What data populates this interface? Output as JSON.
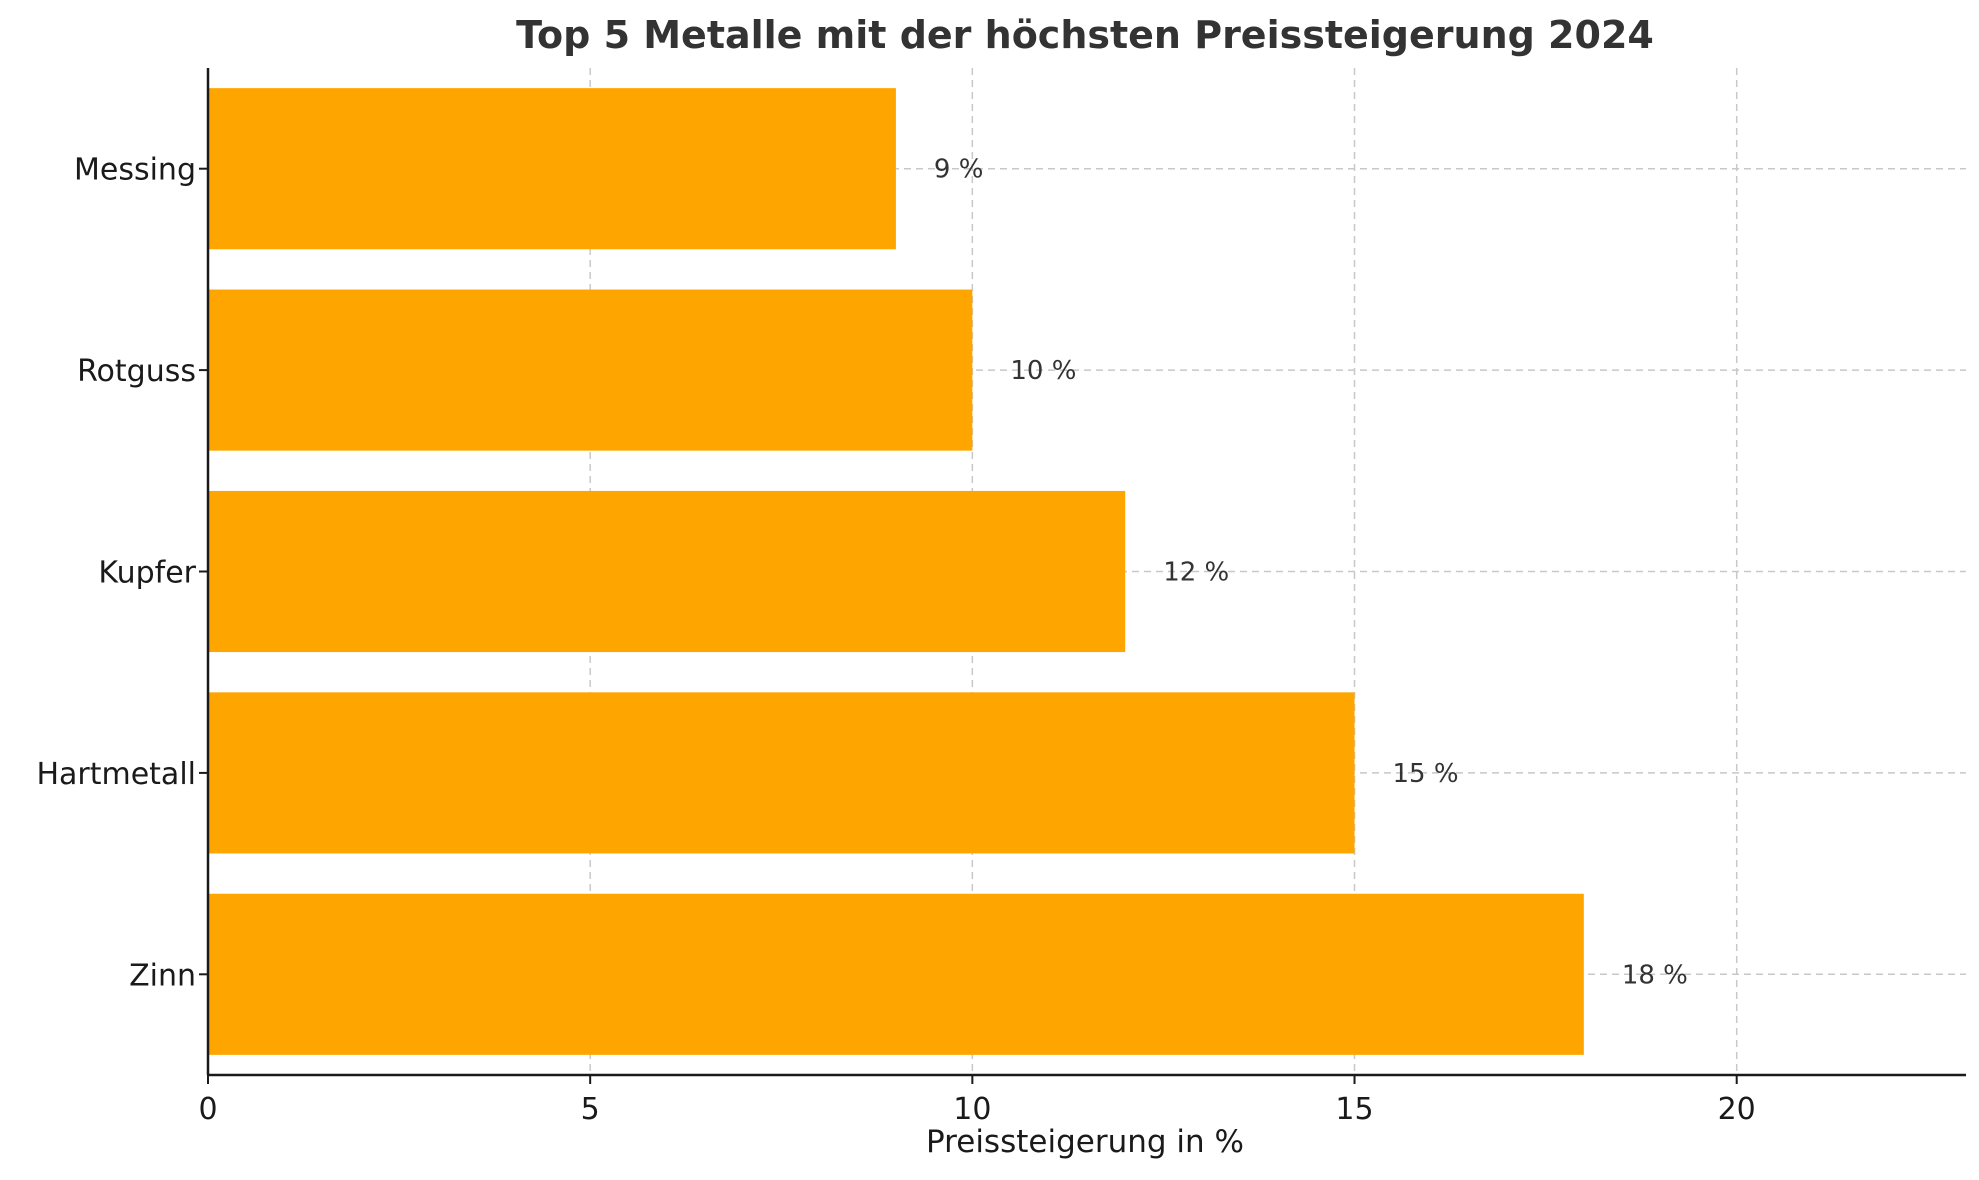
{
  "chart_data": {
    "type": "bar",
    "orientation": "horizontal",
    "title": "Top 5 Metalle mit der höchsten Preissteigerung 2024",
    "xlabel": "Preissteigerung in %",
    "ylabel": "",
    "categories": [
      "Zinn",
      "Hartmetall",
      "Kupfer",
      "Rotguss",
      "Messing"
    ],
    "values": [
      18,
      15,
      12,
      10,
      9
    ],
    "value_labels": [
      "18 %",
      "15 %",
      "12 %",
      "10 %",
      "9 %"
    ],
    "xlim": [
      0,
      23
    ],
    "xticks": [
      0,
      5,
      10,
      15,
      20
    ],
    "grid": true,
    "bar_color": "#FFA500"
  }
}
